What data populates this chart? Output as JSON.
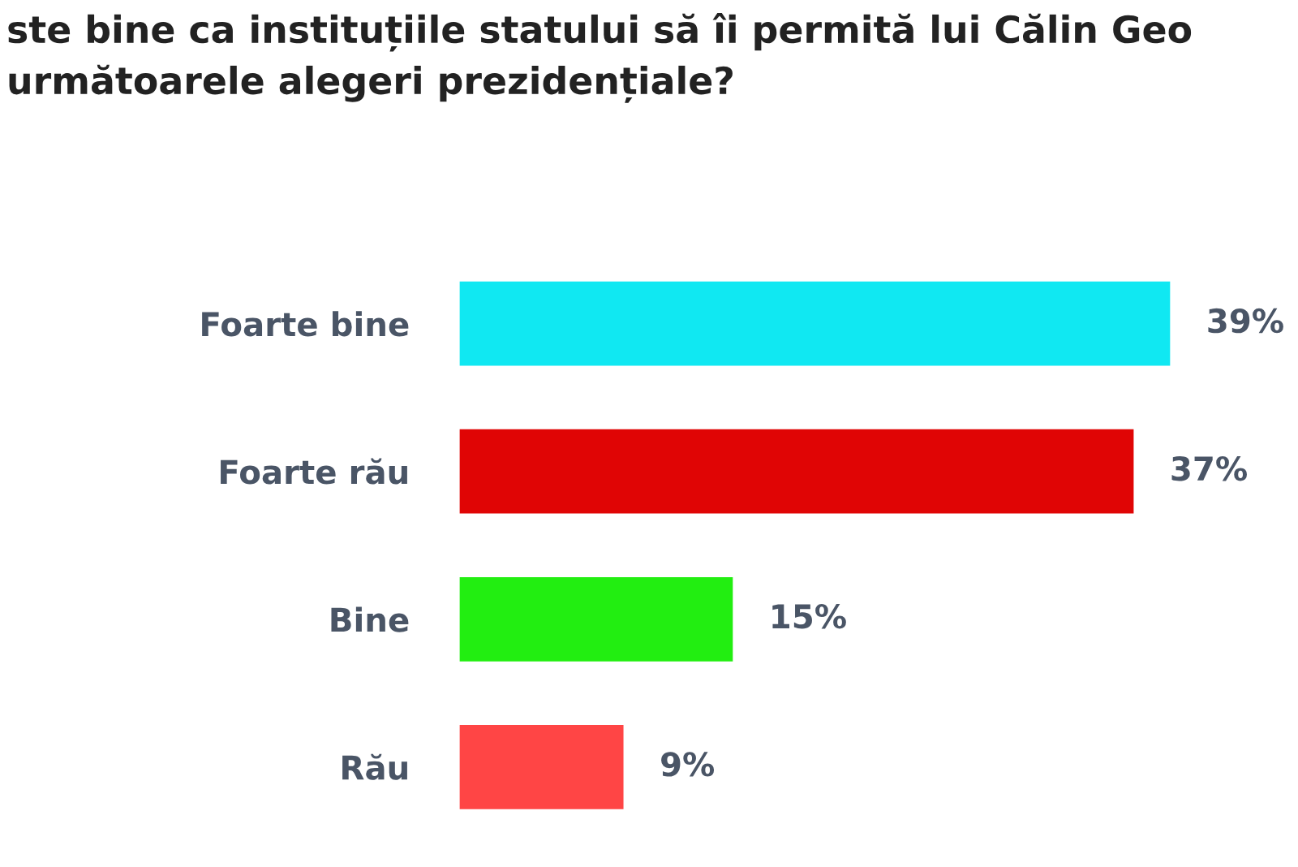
{
  "chart_data": {
    "type": "bar",
    "orientation": "horizontal",
    "title": "ste bine ca instituțiile statului să îi permită lui Călin Geo\nurmătoarele alegeri prezidențiale?",
    "categories": [
      "Foarte bine",
      "Foarte rău",
      "Bine",
      "Rău"
    ],
    "values": [
      39,
      37,
      15,
      9
    ],
    "colors": [
      "#10e8f2",
      "#e00505",
      "#22ee11",
      "#ff4545"
    ],
    "value_labels": [
      "39%",
      "37%",
      "15%",
      "9%"
    ],
    "grid": false,
    "legend": false
  }
}
